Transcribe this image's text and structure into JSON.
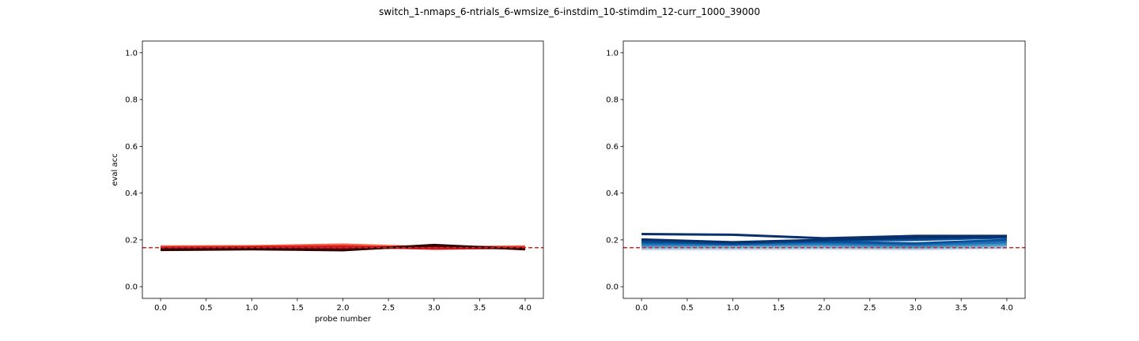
{
  "figure": {
    "suptitle": "switch_1-nmaps_6-ntrials_6-wmsize_6-instdim_10-stimdim_12-curr_1000_39000"
  },
  "chart_data": [
    {
      "type": "line",
      "title": "",
      "xlabel": "probe number",
      "ylabel": "eval acc",
      "xlim": [
        -0.2,
        4.2
      ],
      "ylim": [
        -0.05,
        1.05
      ],
      "xticks": [
        "0.0",
        "0.5",
        "1.0",
        "1.5",
        "2.0",
        "2.5",
        "3.0",
        "3.5",
        "4.0"
      ],
      "yticks": [
        "0.0",
        "0.2",
        "0.4",
        "0.6",
        "0.8",
        "1.0"
      ],
      "grid": false,
      "reference_line": {
        "y": 0.1667,
        "color": "#d62728",
        "style": "dashed"
      },
      "x": [
        0,
        1,
        2,
        3,
        4
      ],
      "series": [
        {
          "color": "#fcbba1",
          "values": [
            0.17,
            0.172,
            0.176,
            0.166,
            0.17
          ]
        },
        {
          "color": "#fb6a4a",
          "values": [
            0.172,
            0.173,
            0.18,
            0.168,
            0.172
          ]
        },
        {
          "color": "#ef3b2c",
          "values": [
            0.168,
            0.17,
            0.174,
            0.162,
            0.168
          ]
        },
        {
          "color": "#cb181d",
          "values": [
            0.166,
            0.168,
            0.17,
            0.164,
            0.166
          ]
        },
        {
          "color": "#a50f15",
          "values": [
            0.162,
            0.166,
            0.163,
            0.17,
            0.164
          ]
        },
        {
          "color": "#67000d",
          "values": [
            0.16,
            0.162,
            0.158,
            0.175,
            0.162
          ]
        },
        {
          "color": "#300000",
          "values": [
            0.157,
            0.16,
            0.156,
            0.178,
            0.16
          ]
        }
      ]
    },
    {
      "type": "line",
      "title": "",
      "xlabel": "",
      "ylabel": "",
      "xlim": [
        -0.2,
        4.2
      ],
      "ylim": [
        -0.05,
        1.05
      ],
      "xticks": [
        "0.0",
        "0.5",
        "1.0",
        "1.5",
        "2.0",
        "2.5",
        "3.0",
        "3.5",
        "4.0"
      ],
      "yticks": [
        "0.0",
        "0.2",
        "0.4",
        "0.6",
        "0.8",
        "1.0"
      ],
      "grid": false,
      "reference_line": {
        "y": 0.1667,
        "color": "#d62728",
        "style": "dashed"
      },
      "x": [
        0,
        1,
        2,
        3,
        4
      ],
      "series": [
        {
          "color": "#c6dbef",
          "values": [
            0.16,
            0.16,
            0.162,
            0.16,
            0.165
          ]
        },
        {
          "color": "#9ecae1",
          "values": [
            0.165,
            0.166,
            0.168,
            0.164,
            0.17
          ]
        },
        {
          "color": "#6baed6",
          "values": [
            0.17,
            0.172,
            0.172,
            0.168,
            0.176
          ]
        },
        {
          "color": "#4292c6",
          "values": [
            0.175,
            0.178,
            0.178,
            0.172,
            0.182
          ]
        },
        {
          "color": "#2171b5",
          "values": [
            0.182,
            0.18,
            0.185,
            0.178,
            0.19
          ]
        },
        {
          "color": "#08519c",
          "values": [
            0.19,
            0.186,
            0.192,
            0.185,
            0.2
          ]
        },
        {
          "color": "#084a91",
          "values": [
            0.195,
            0.183,
            0.198,
            0.2,
            0.21
          ]
        },
        {
          "color": "#08306b",
          "values": [
            0.202,
            0.19,
            0.2,
            0.21,
            0.215
          ]
        },
        {
          "color": "#08306b",
          "values": [
            0.225,
            0.222,
            0.207,
            0.217,
            0.217
          ]
        }
      ]
    }
  ]
}
